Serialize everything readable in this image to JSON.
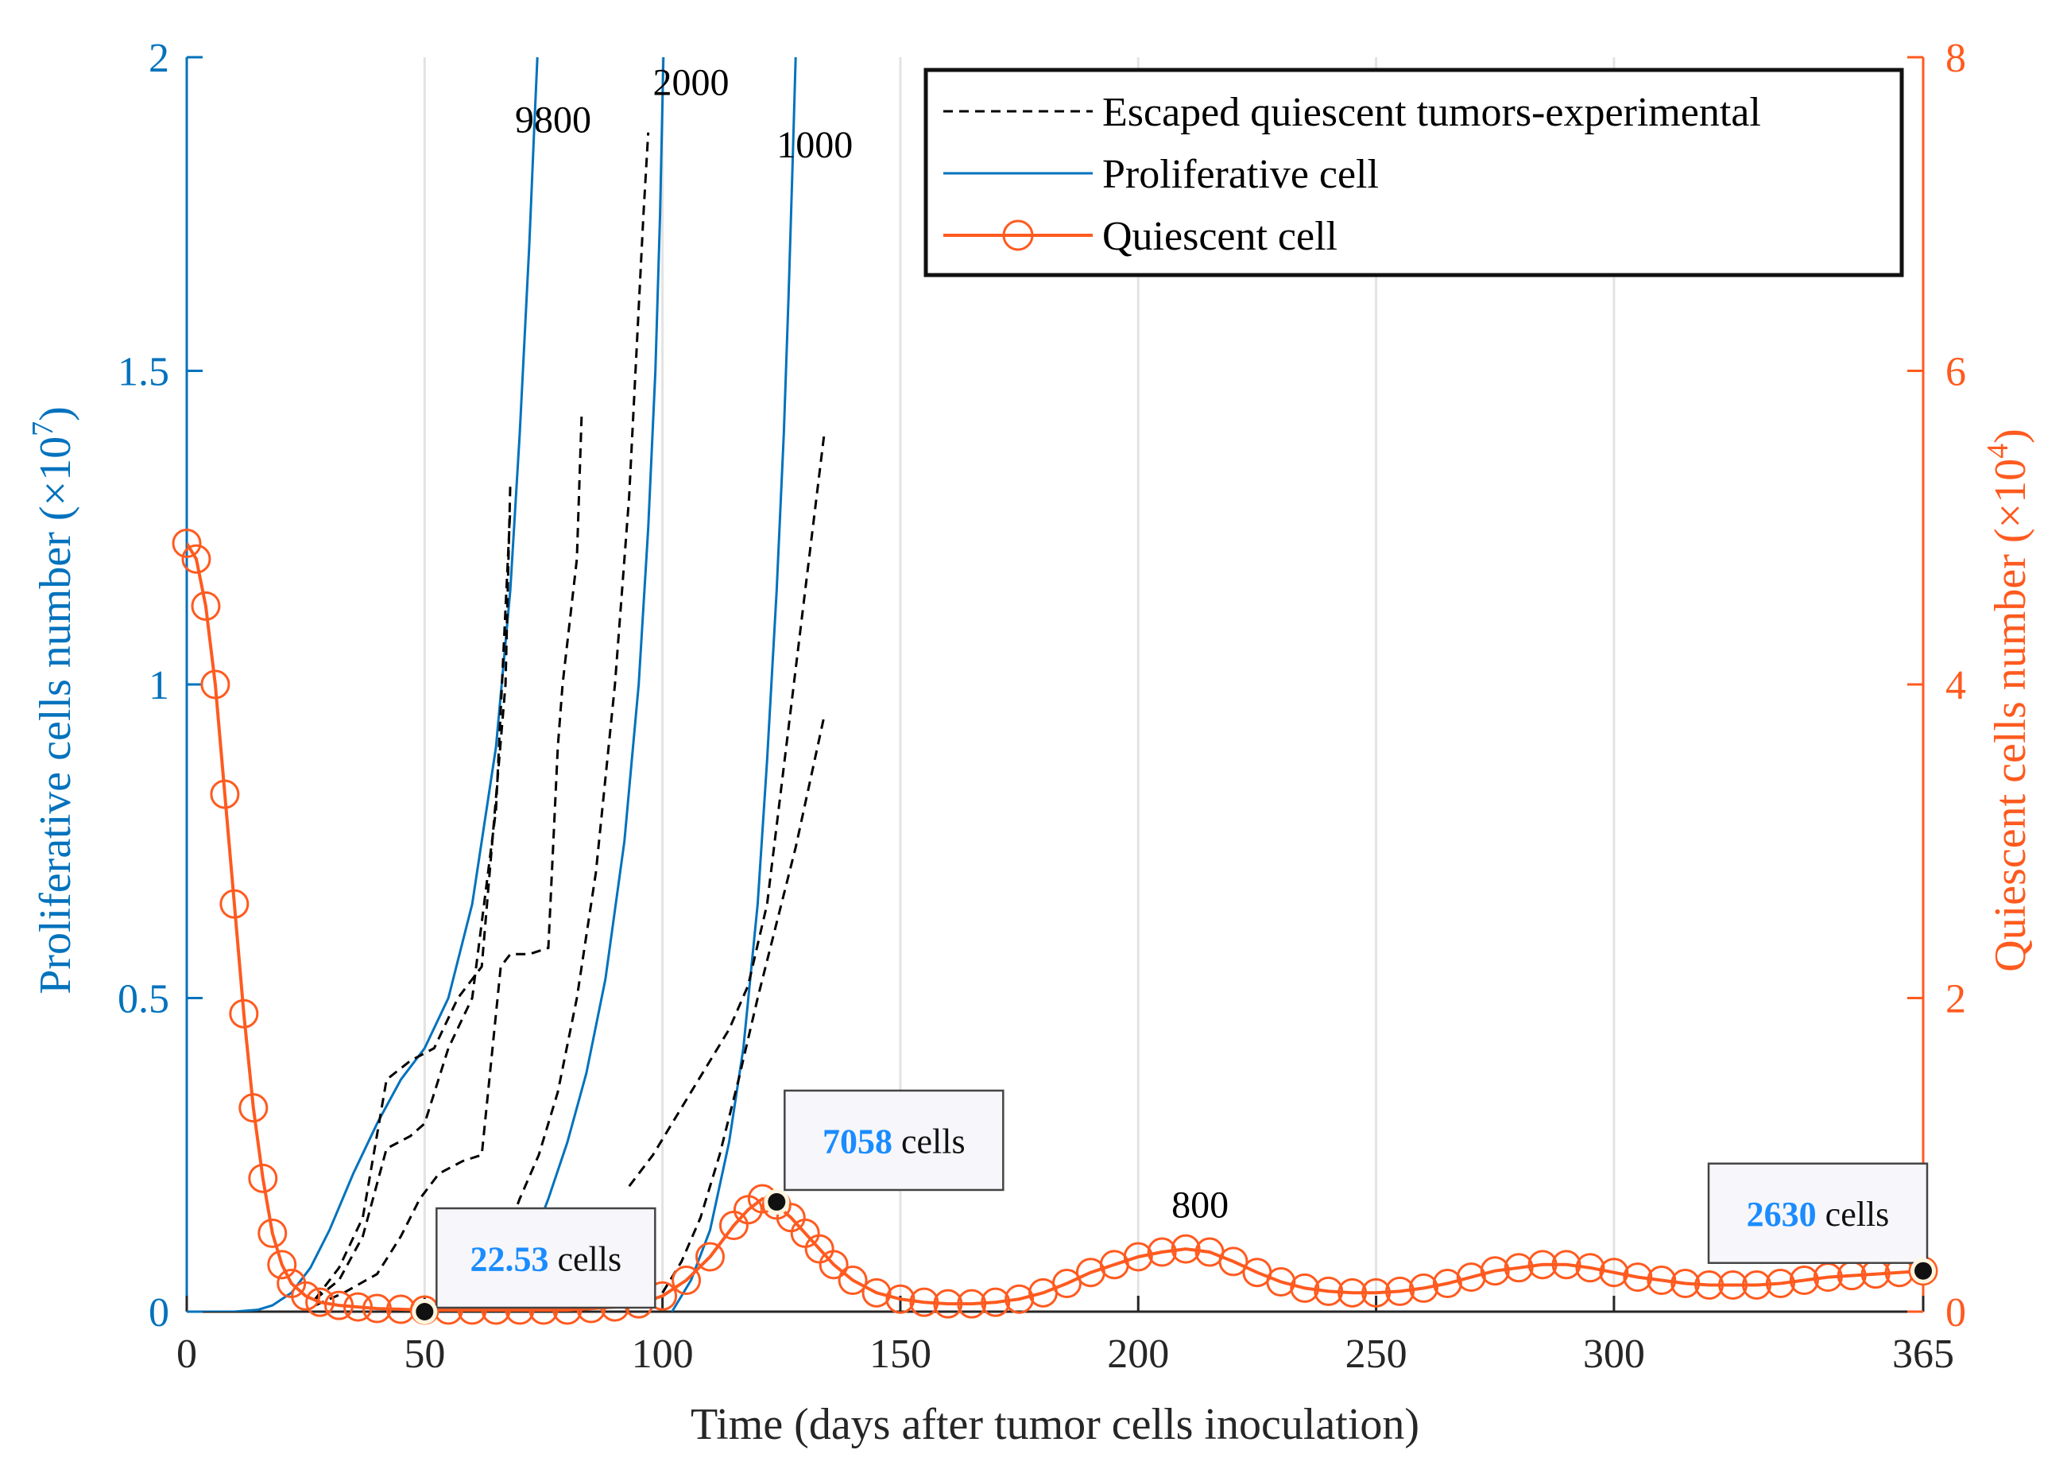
{
  "chart_data": {
    "type": "line",
    "x_axis": {
      "label": "Time (days after tumor cells inoculation)",
      "range": [
        0,
        365
      ],
      "ticks": [
        0,
        50,
        100,
        150,
        200,
        250,
        300,
        365
      ],
      "tick_labels": [
        "0",
        "50",
        "100",
        "150",
        "200",
        "250",
        "300",
        "365"
      ],
      "grid": true
    },
    "y_left": {
      "label_main": "Proliferative cells number (×10",
      "label_exp": "7",
      "label_close": ")",
      "range": [
        0,
        2
      ],
      "ticks": [
        0,
        0.5,
        1,
        1.5,
        2
      ],
      "tick_labels": [
        "0",
        "0.5",
        "1",
        "1.5",
        "2"
      ],
      "color": "#0072bd"
    },
    "y_right": {
      "label_main": "Quiescent cells number (×10",
      "label_exp": "4",
      "label_close": ")",
      "range": [
        0,
        8
      ],
      "ticks": [
        0,
        2,
        4,
        6,
        8
      ],
      "tick_labels": [
        "0",
        "2",
        "4",
        "6",
        "8"
      ],
      "color": "#ff5a1f"
    },
    "legend": {
      "placement": "top-right",
      "entries": [
        {
          "label": "Escaped quiescent tumors-experimental",
          "style": "dashed",
          "color": "#000000"
        },
        {
          "label": "Proliferative cell",
          "style": "solid",
          "color": "#0072bd"
        },
        {
          "label": "Quiescent cell",
          "style": "circle-line",
          "color": "#ff5a1f"
        }
      ]
    },
    "series": [
      {
        "name": "Proliferative cell",
        "axis": "left",
        "color": "#0072bd",
        "style": "solid",
        "label": "9800",
        "x": [
          0,
          10,
          15,
          18,
          22,
          26,
          30,
          35,
          40,
          45,
          50,
          55,
          60,
          65,
          68,
          70,
          72,
          73,
          73.7
        ],
        "y": [
          0,
          0,
          0.003,
          0.01,
          0.03,
          0.07,
          0.13,
          0.22,
          0.3,
          0.37,
          0.42,
          0.5,
          0.65,
          0.9,
          1.15,
          1.4,
          1.7,
          1.88,
          2.0
        ]
      },
      {
        "name": "Proliferative cell",
        "axis": "left",
        "color": "#0072bd",
        "style": "solid",
        "label": "2000",
        "x": [
          64,
          68,
          72,
          76,
          80,
          84,
          88,
          92,
          95,
          97,
          98.5,
          99.5,
          100.2
        ],
        "y": [
          0,
          0.03,
          0.1,
          0.18,
          0.27,
          0.38,
          0.53,
          0.75,
          1.0,
          1.25,
          1.5,
          1.75,
          2.0
        ]
      },
      {
        "name": "Proliferative cell",
        "axis": "left",
        "color": "#0072bd",
        "style": "solid",
        "label": "1000",
        "x": [
          102,
          106,
          110,
          114,
          117,
          120,
          122,
          124,
          125.5,
          126.5,
          127.3,
          128
        ],
        "y": [
          0,
          0.05,
          0.13,
          0.27,
          0.42,
          0.65,
          0.88,
          1.15,
          1.4,
          1.62,
          1.82,
          2.0
        ]
      },
      {
        "name": "Escaped quiescent tumors-experimental",
        "axis": "left",
        "color": "#000000",
        "style": "dashed",
        "x": [
          27,
          32,
          37,
          42,
          47,
          52,
          57,
          62,
          67,
          68
        ],
        "y": [
          0.02,
          0.07,
          0.15,
          0.37,
          0.4,
          0.42,
          0.5,
          0.55,
          1.0,
          1.32
        ]
      },
      {
        "name": "Escaped quiescent tumors-experimental",
        "axis": "left",
        "color": "#000000",
        "style": "dashed",
        "x": [
          27,
          32,
          37,
          42,
          47,
          50,
          55,
          60,
          65,
          68
        ],
        "y": [
          0.02,
          0.05,
          0.12,
          0.26,
          0.28,
          0.3,
          0.42,
          0.5,
          0.8,
          1.28
        ]
      },
      {
        "name": "Escaped quiescent tumors-experimental",
        "axis": "left",
        "color": "#000000",
        "style": "dashed",
        "x": [
          27,
          33,
          40,
          45,
          49,
          53,
          58,
          62,
          66,
          68,
          72,
          76,
          78,
          79,
          82,
          83
        ],
        "y": [
          0.01,
          0.03,
          0.06,
          0.12,
          0.18,
          0.22,
          0.24,
          0.25,
          0.55,
          0.57,
          0.57,
          0.58,
          0.9,
          1.0,
          1.2,
          1.43
        ]
      },
      {
        "name": "Escaped quiescent tumors-experimental",
        "axis": "left",
        "color": "#000000",
        "style": "dashed",
        "x": [
          58,
          62,
          66,
          70,
          74,
          78,
          82,
          86,
          90,
          93,
          95,
          96,
          97
        ],
        "y": [
          0.02,
          0.05,
          0.1,
          0.18,
          0.25,
          0.35,
          0.5,
          0.7,
          1.0,
          1.3,
          1.6,
          1.75,
          1.88
        ]
      },
      {
        "name": "Escaped quiescent tumors-experimental",
        "axis": "left",
        "color": "#000000",
        "style": "dashed",
        "x": [
          93,
          98,
          102,
          106,
          110,
          114,
          118,
          122,
          126,
          130,
          134
        ],
        "y": [
          0.2,
          0.25,
          0.3,
          0.35,
          0.4,
          0.45,
          0.52,
          0.65,
          0.9,
          1.15,
          1.4
        ]
      },
      {
        "name": "Escaped quiescent tumors-experimental",
        "axis": "left",
        "color": "#000000",
        "style": "dashed",
        "x": [
          100,
          104,
          108,
          112,
          116,
          120,
          124,
          128,
          132,
          134
        ],
        "y": [
          0.03,
          0.08,
          0.15,
          0.25,
          0.37,
          0.5,
          0.62,
          0.74,
          0.88,
          0.95
        ]
      },
      {
        "name": "Quiescent cell",
        "axis": "right",
        "color": "#ff5a1f",
        "style": "circle-line",
        "label": "800",
        "x": [
          0,
          2,
          4,
          6,
          8,
          10,
          12,
          14,
          16,
          18,
          20,
          22,
          25,
          28,
          32,
          36,
          40,
          45,
          50,
          55,
          60,
          65,
          70,
          75,
          80,
          85,
          90,
          95,
          100,
          105,
          110,
          115,
          118,
          121,
          124,
          127,
          130,
          133,
          136,
          140,
          145,
          150,
          155,
          160,
          165,
          170,
          175,
          180,
          185,
          190,
          195,
          200,
          205,
          210,
          215,
          220,
          225,
          230,
          235,
          240,
          245,
          250,
          255,
          260,
          265,
          270,
          275,
          280,
          285,
          290,
          295,
          300,
          305,
          310,
          315,
          320,
          325,
          330,
          335,
          340,
          345,
          350,
          355,
          360,
          365
        ],
        "y": [
          4.9,
          4.8,
          4.5,
          4.0,
          3.3,
          2.6,
          1.9,
          1.3,
          0.85,
          0.5,
          0.3,
          0.18,
          0.1,
          0.06,
          0.04,
          0.03,
          0.02,
          0.015,
          0.01,
          0.01,
          0.01,
          0.01,
          0.01,
          0.01,
          0.01,
          0.02,
          0.03,
          0.05,
          0.1,
          0.2,
          0.35,
          0.55,
          0.65,
          0.72,
          0.68,
          0.6,
          0.5,
          0.4,
          0.3,
          0.2,
          0.12,
          0.08,
          0.06,
          0.05,
          0.05,
          0.06,
          0.08,
          0.12,
          0.18,
          0.25,
          0.3,
          0.35,
          0.38,
          0.4,
          0.38,
          0.32,
          0.25,
          0.19,
          0.15,
          0.13,
          0.12,
          0.12,
          0.13,
          0.15,
          0.18,
          0.22,
          0.26,
          0.28,
          0.3,
          0.3,
          0.28,
          0.25,
          0.22,
          0.2,
          0.18,
          0.17,
          0.17,
          0.17,
          0.18,
          0.2,
          0.22,
          0.23,
          0.24,
          0.25,
          0.26
        ]
      }
    ],
    "annotations": [
      {
        "value": "22.53",
        "unit": "cells",
        "x": 50,
        "y_right": 0.0
      },
      {
        "value": "7058",
        "unit": "cells",
        "x": 124,
        "y_right": 0.7
      },
      {
        "value": "2630",
        "unit": "cells",
        "x": 365,
        "y_right": 0.26
      }
    ]
  }
}
